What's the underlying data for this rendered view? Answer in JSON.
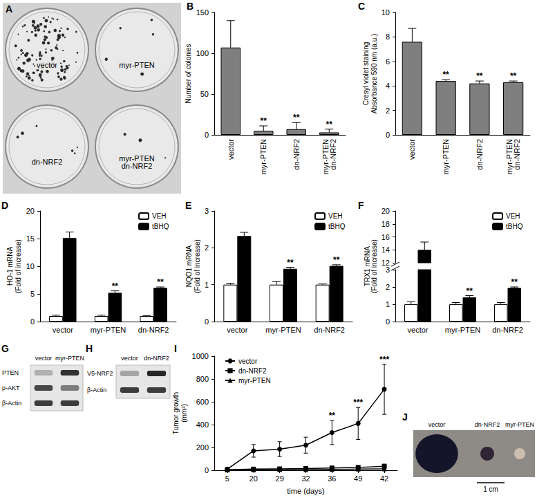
{
  "images": [
    {
      "panel": "A",
      "labels": [
        "vector",
        "myr-PTEN",
        "dn-NRF2",
        "myr-PTEN\ndn-NRF2"
      ]
    },
    {
      "panel": "G",
      "lanes": [
        "vector",
        "myr-PTEN"
      ],
      "rows": [
        "PTEN",
        "p-AKT",
        "β-Actin"
      ]
    },
    {
      "panel": "H",
      "lanes": [
        "vector",
        "dn-NRF2"
      ],
      "rows": [
        "V5-NRF2",
        "β-Actin"
      ]
    },
    {
      "panel": "J",
      "labels": [
        "vector",
        "dn-NRF2",
        "myr-PTEN"
      ],
      "scale_bar": "1 cm"
    }
  ],
  "chart_data": [
    {
      "panel": "B",
      "type": "bar",
      "categories": [
        "vector",
        "myr-PTEN",
        "dn-NRF2",
        "myr-PTEN\ndn-NRF2"
      ],
      "values": [
        107,
        5,
        7,
        3
      ],
      "errors": [
        33,
        6,
        8,
        4
      ],
      "annotations": [
        null,
        "**",
        "**",
        "**"
      ],
      "color": "#7f7f7f",
      "y_label": "Number of colonies",
      "ylim": [
        0,
        150
      ],
      "yticks": [
        0,
        50,
        100,
        150
      ],
      "grid": false
    },
    {
      "panel": "C",
      "type": "bar",
      "categories": [
        "vector",
        "myr-PTEN",
        "dn-NRF2",
        "myr-PTEN\ndn-NRF2"
      ],
      "values": [
        7.6,
        4.4,
        4.2,
        4.3
      ],
      "errors": [
        1.1,
        0.1,
        0.2,
        0.1
      ],
      "annotations": [
        null,
        "**",
        "**",
        "**"
      ],
      "color": "#7f7f7f",
      "y_label": "Cresyl violet staining\nAbsorbance 590 nm (a.u.)",
      "ylim": [
        0,
        10
      ],
      "yticks": [
        0,
        2,
        4,
        6,
        8,
        10
      ],
      "grid": false
    },
    {
      "panel": "D",
      "type": "bar",
      "categories": [
        "vector",
        "myr-PTEN",
        "dn-NRF2"
      ],
      "series": [
        {
          "name": "VEH",
          "color": "#ffffff",
          "values": [
            1,
            1,
            1
          ],
          "errors": [
            0.15,
            0.15,
            0.05
          ],
          "annotations": [
            null,
            null,
            null
          ]
        },
        {
          "name": "tBHQ",
          "color": "#000000",
          "values": [
            15.1,
            5.2,
            6.1
          ],
          "errors": [
            1.1,
            0.35,
            0.15
          ],
          "annotations": [
            null,
            "**",
            "**"
          ]
        }
      ],
      "y_label": "HO-1 mRNA\n(Fold of increase)",
      "ylim": [
        0,
        20
      ],
      "yticks": [
        0,
        5,
        10,
        15,
        20
      ],
      "legend": "upper right",
      "grid": false
    },
    {
      "panel": "E",
      "type": "bar",
      "categories": [
        "vector",
        "myr-PTEN",
        "dn-NRF2"
      ],
      "series": [
        {
          "name": "VEH",
          "color": "#ffffff",
          "values": [
            1,
            1,
            1
          ],
          "errors": [
            0.04,
            0.08,
            0.02
          ],
          "annotations": [
            null,
            null,
            null
          ]
        },
        {
          "name": "tBHQ",
          "color": "#000000",
          "values": [
            2.32,
            1.43,
            1.51
          ],
          "errors": [
            0.1,
            0.04,
            0.03
          ],
          "annotations": [
            null,
            "**",
            "**"
          ]
        }
      ],
      "y_label": "NQO1 mRNA\n(Fold of increase)",
      "ylim": [
        0,
        3
      ],
      "yticks": [
        0,
        1,
        2,
        3
      ],
      "legend": "upper right",
      "grid": false
    },
    {
      "panel": "F",
      "type": "bar",
      "categories": [
        "vector",
        "myr-PTEN",
        "dn-NRF2"
      ],
      "series": [
        {
          "name": "VEH",
          "color": "#ffffff",
          "values": [
            1,
            1,
            1
          ],
          "errors": [
            0.15,
            0.1,
            0.1
          ],
          "annotations": [
            null,
            null,
            null
          ]
        },
        {
          "name": "tBHQ",
          "color": "#000000",
          "values": [
            14,
            1.4,
            1.95
          ],
          "errors": [
            1.2,
            0.1,
            0.05
          ],
          "annotations": [
            null,
            "**",
            "**"
          ]
        }
      ],
      "y_label": "TRX1 mRNA\n(Fold of increase)",
      "ylim": [
        0,
        20
      ],
      "yticks": [
        0,
        1,
        2,
        3,
        12,
        14,
        16,
        18,
        20
      ],
      "axis_break": [
        3,
        12
      ],
      "legend": "upper right",
      "grid": false
    },
    {
      "panel": "I",
      "type": "line",
      "categories": [
        "5",
        "20",
        "29",
        "32",
        "36",
        "49",
        "42"
      ],
      "series": [
        {
          "name": "vector",
          "color": "#000000",
          "marker": "circle",
          "values": [
            10,
            170,
            185,
            220,
            330,
            410,
            710
          ],
          "errors": [
            8,
            55,
            65,
            70,
            105,
            140,
            220
          ],
          "annotations": [
            null,
            null,
            null,
            null,
            "**",
            "***",
            "***"
          ]
        },
        {
          "name": "dn-NRF2",
          "color": "#000000",
          "marker": "square",
          "values": [
            5,
            10,
            12,
            15,
            20,
            25,
            35
          ],
          "errors": [
            3,
            5,
            6,
            8,
            10,
            12,
            18
          ],
          "annotations": [
            null,
            null,
            null,
            null,
            null,
            null,
            null
          ]
        },
        {
          "name": "myr-PTEN",
          "color": "#000000",
          "marker": "triangle",
          "values": [
            3,
            5,
            6,
            6,
            8,
            10,
            12
          ],
          "errors": [
            2,
            3,
            3,
            4,
            4,
            5,
            6
          ],
          "annotations": [
            null,
            null,
            null,
            null,
            null,
            null,
            null
          ]
        }
      ],
      "x_label": "time (days)",
      "y_label": "Tumor growth\n(mm³)",
      "ylim": [
        0,
        1000
      ],
      "yticks": [
        0,
        200,
        400,
        600,
        800,
        1000
      ],
      "legend": "upper left",
      "grid": false
    }
  ]
}
